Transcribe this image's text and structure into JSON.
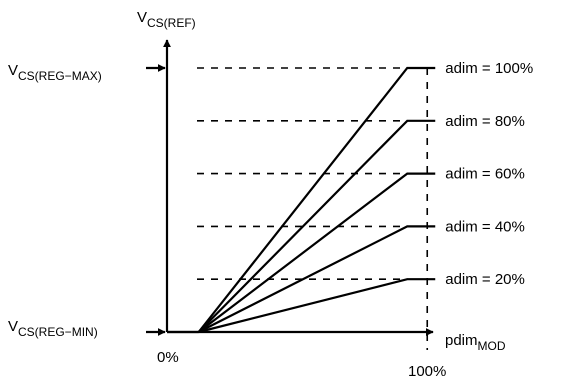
{
  "chart_data": {
    "type": "line",
    "title": "",
    "ylabel": {
      "main": "V",
      "sub": "CS(REF)"
    },
    "xlabel": {
      "main": "pdim",
      "sub": "MOD"
    },
    "x_ticks": [
      "0%",
      "100%"
    ],
    "y_markers": {
      "max": {
        "main": "V",
        "sub": "CS(REG−MAX)"
      },
      "min": {
        "main": "V",
        "sub": "CS(REG−MIN)"
      }
    },
    "xlim": [
      0,
      100
    ],
    "ylim": [
      0,
      100
    ],
    "x_knee_start": 12,
    "x_saturation": 91,
    "y_min_level": 0,
    "grid": false,
    "series": [
      {
        "name": "adim = 100%",
        "adim": 100
      },
      {
        "name": "adim = 80%",
        "adim": 80
      },
      {
        "name": "adim = 60%",
        "adim": 60
      },
      {
        "name": "adim = 40%",
        "adim": 40
      },
      {
        "name": "adim = 20%",
        "adim": 20
      }
    ]
  }
}
